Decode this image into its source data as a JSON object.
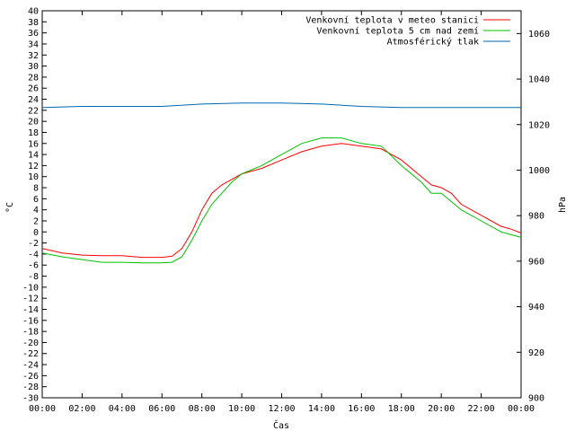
{
  "chart_data": {
    "type": "line",
    "xlabel": "Čas",
    "ylabel": "°C",
    "y2label": "hPa",
    "x_ticks": [
      "00:00",
      "02:00",
      "04:00",
      "06:00",
      "08:00",
      "10:00",
      "12:00",
      "14:00",
      "16:00",
      "18:00",
      "20:00",
      "22:00",
      "00:00"
    ],
    "ylim": [
      -30,
      40
    ],
    "y_step": 2,
    "y2lim": [
      900,
      1070
    ],
    "y2_ticks": [
      900,
      920,
      940,
      960,
      980,
      1000,
      1020,
      1040,
      1060
    ],
    "grid": false,
    "legend_position": "top-right",
    "series": [
      {
        "name": "Venkovní teplota v meteo stanici",
        "axis": "left",
        "color": "#ff0000",
        "x": [
          0,
          1,
          2,
          3,
          4,
          5,
          6,
          6.5,
          7,
          7.5,
          8,
          8.5,
          9,
          9.5,
          10,
          11,
          12,
          13,
          14,
          15,
          16,
          17,
          18,
          19,
          19.5,
          20,
          20.5,
          21,
          22,
          23,
          23.5,
          24
        ],
        "y": [
          -3,
          -3.8,
          -4.2,
          -4.3,
          -4.3,
          -4.6,
          -4.6,
          -4.4,
          -3,
          0,
          4,
          7,
          8.5,
          9.5,
          10.5,
          11.5,
          13,
          14.5,
          15.5,
          16,
          15.5,
          15,
          13,
          10,
          8.5,
          8,
          7,
          5,
          3,
          1,
          0.5,
          -0.2
        ]
      },
      {
        "name": "Venkovní teplota 5 cm nad zemí",
        "axis": "left",
        "color": "#00c000",
        "x": [
          0,
          1,
          2,
          3,
          4,
          5,
          6,
          6.5,
          7,
          7.5,
          8,
          8.5,
          9,
          9.5,
          10,
          11,
          12,
          13,
          14,
          15,
          16,
          17,
          18,
          19,
          19.5,
          20,
          20.5,
          21,
          22,
          23,
          23.5,
          24
        ],
        "y": [
          -3.8,
          -4.5,
          -5,
          -5.5,
          -5.5,
          -5.6,
          -5.6,
          -5.5,
          -4.5,
          -1.5,
          2,
          5,
          7,
          9,
          10.5,
          12,
          14,
          16,
          17,
          17,
          16,
          15.5,
          12,
          9,
          7,
          7,
          5.5,
          4,
          2,
          0,
          -0.5,
          -1
        ]
      },
      {
        "name": "Atmosférický tlak",
        "axis": "right",
        "color": "#0066b3",
        "x": [
          0,
          2,
          4,
          6,
          8,
          10,
          11,
          12,
          14,
          16,
          18,
          20,
          22,
          24
        ],
        "y": [
          1027.5,
          1028,
          1028,
          1028,
          1029,
          1029.5,
          1029.5,
          1029.5,
          1029,
          1028,
          1027.5,
          1027.5,
          1027.5,
          1027.5
        ]
      }
    ]
  }
}
